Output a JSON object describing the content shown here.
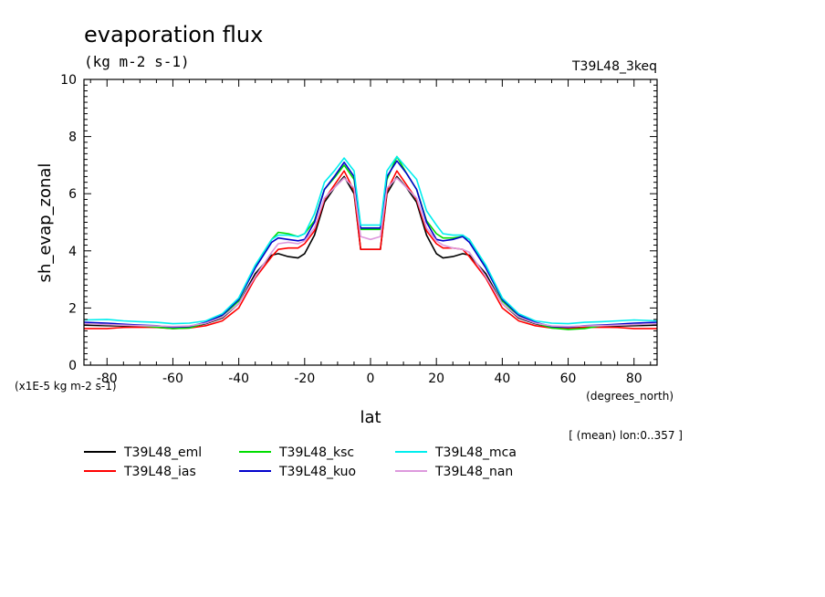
{
  "chart_data": {
    "type": "line",
    "title": "evaporation flux",
    "units": "(kg m-2 s-1)",
    "run_label": "T39L48_3keq",
    "ylabel": "sh_evap_zonal",
    "xlabel": "lat",
    "x_units": "(degrees_north)",
    "scale_note": "(x1E-5 kg m-2 s-1)",
    "averaging_note": "[ (mean) lon:0..357 ]",
    "xlim": [
      -87,
      87
    ],
    "ylim": [
      0,
      10
    ],
    "x_ticks": [
      -80,
      -60,
      -40,
      -20,
      0,
      20,
      40,
      60,
      80
    ],
    "x_tick_labels": [
      "-80",
      "-60",
      "-40",
      "-20",
      "0",
      "20",
      "40",
      "60",
      "80"
    ],
    "y_ticks": [
      0,
      2,
      4,
      6,
      8,
      10
    ],
    "y_tick_labels": [
      "0",
      "2",
      "4",
      "6",
      "8",
      "10"
    ],
    "x": [
      -87,
      -80,
      -75,
      -70,
      -65,
      -60,
      -55,
      -50,
      -45,
      -40,
      -35,
      -30,
      -28,
      -25,
      -22,
      -20,
      -17,
      -14,
      -11,
      -8,
      -5,
      -3,
      0,
      3,
      5,
      8,
      11,
      14,
      17,
      20,
      22,
      25,
      28,
      30,
      35,
      40,
      45,
      50,
      55,
      60,
      65,
      70,
      75,
      80,
      87
    ],
    "series": [
      {
        "name": "T39L48_eml",
        "color": "#000000",
        "values": [
          1.4,
          1.38,
          1.37,
          1.36,
          1.33,
          1.3,
          1.32,
          1.45,
          1.65,
          2.15,
          3.2,
          3.85,
          3.9,
          3.8,
          3.75,
          3.9,
          4.55,
          5.7,
          6.2,
          6.6,
          6.0,
          4.05,
          4.05,
          4.05,
          6.0,
          6.6,
          6.2,
          5.7,
          4.55,
          3.9,
          3.75,
          3.8,
          3.9,
          3.85,
          3.2,
          2.15,
          1.65,
          1.45,
          1.32,
          1.3,
          1.33,
          1.36,
          1.37,
          1.38,
          1.4
        ]
      },
      {
        "name": "T39L48_ias",
        "color": "#ff0000",
        "values": [
          1.28,
          1.28,
          1.32,
          1.33,
          1.32,
          1.28,
          1.3,
          1.38,
          1.55,
          2.0,
          3.05,
          3.8,
          4.05,
          4.1,
          4.1,
          4.25,
          4.7,
          5.8,
          6.3,
          6.8,
          6.1,
          4.05,
          4.05,
          4.05,
          6.1,
          6.8,
          6.3,
          5.8,
          4.7,
          4.25,
          4.1,
          4.1,
          4.05,
          3.8,
          3.05,
          2.0,
          1.55,
          1.38,
          1.3,
          1.28,
          1.32,
          1.33,
          1.32,
          1.28,
          1.28
        ]
      },
      {
        "name": "T39L48_ksc",
        "color": "#00dd00",
        "values": [
          1.45,
          1.42,
          1.4,
          1.38,
          1.33,
          1.28,
          1.3,
          1.48,
          1.72,
          2.25,
          3.45,
          4.4,
          4.65,
          4.6,
          4.5,
          4.6,
          5.05,
          6.15,
          6.55,
          7.0,
          6.5,
          4.75,
          4.75,
          4.75,
          6.5,
          7.3,
          6.7,
          6.15,
          5.05,
          4.6,
          4.45,
          4.45,
          4.5,
          4.4,
          3.45,
          2.25,
          1.72,
          1.48,
          1.3,
          1.25,
          1.28,
          1.38,
          1.4,
          1.42,
          1.45
        ]
      },
      {
        "name": "T39L48_kuo",
        "color": "#0000cc",
        "values": [
          1.5,
          1.47,
          1.43,
          1.4,
          1.38,
          1.33,
          1.35,
          1.5,
          1.75,
          2.3,
          3.4,
          4.3,
          4.45,
          4.4,
          4.35,
          4.4,
          5.0,
          6.15,
          6.6,
          7.1,
          6.6,
          4.8,
          4.8,
          4.8,
          6.6,
          7.15,
          6.7,
          6.15,
          5.0,
          4.4,
          4.35,
          4.4,
          4.5,
          4.3,
          3.4,
          2.3,
          1.75,
          1.5,
          1.35,
          1.33,
          1.38,
          1.4,
          1.43,
          1.47,
          1.5
        ]
      },
      {
        "name": "T39L48_mca",
        "color": "#00eeee",
        "values": [
          1.58,
          1.6,
          1.55,
          1.52,
          1.5,
          1.45,
          1.47,
          1.55,
          1.8,
          2.35,
          3.5,
          4.4,
          4.55,
          4.55,
          4.5,
          4.6,
          5.3,
          6.4,
          6.8,
          7.25,
          6.8,
          4.9,
          4.9,
          4.9,
          6.8,
          7.3,
          6.9,
          6.5,
          5.4,
          4.9,
          4.6,
          4.55,
          4.55,
          4.4,
          3.5,
          2.35,
          1.8,
          1.55,
          1.47,
          1.45,
          1.5,
          1.52,
          1.55,
          1.58,
          1.55
        ]
      },
      {
        "name": "T39L48_nan",
        "color": "#dd99dd",
        "values": [
          1.45,
          1.42,
          1.4,
          1.38,
          1.37,
          1.35,
          1.37,
          1.47,
          1.68,
          2.15,
          3.1,
          3.95,
          4.25,
          4.3,
          4.25,
          4.35,
          4.8,
          5.85,
          6.2,
          6.55,
          6.2,
          4.5,
          4.4,
          4.5,
          6.2,
          6.55,
          6.2,
          5.85,
          4.8,
          4.35,
          4.2,
          4.1,
          4.05,
          3.95,
          3.1,
          2.15,
          1.68,
          1.47,
          1.37,
          1.35,
          1.37,
          1.38,
          1.4,
          1.42,
          1.45
        ]
      }
    ]
  }
}
